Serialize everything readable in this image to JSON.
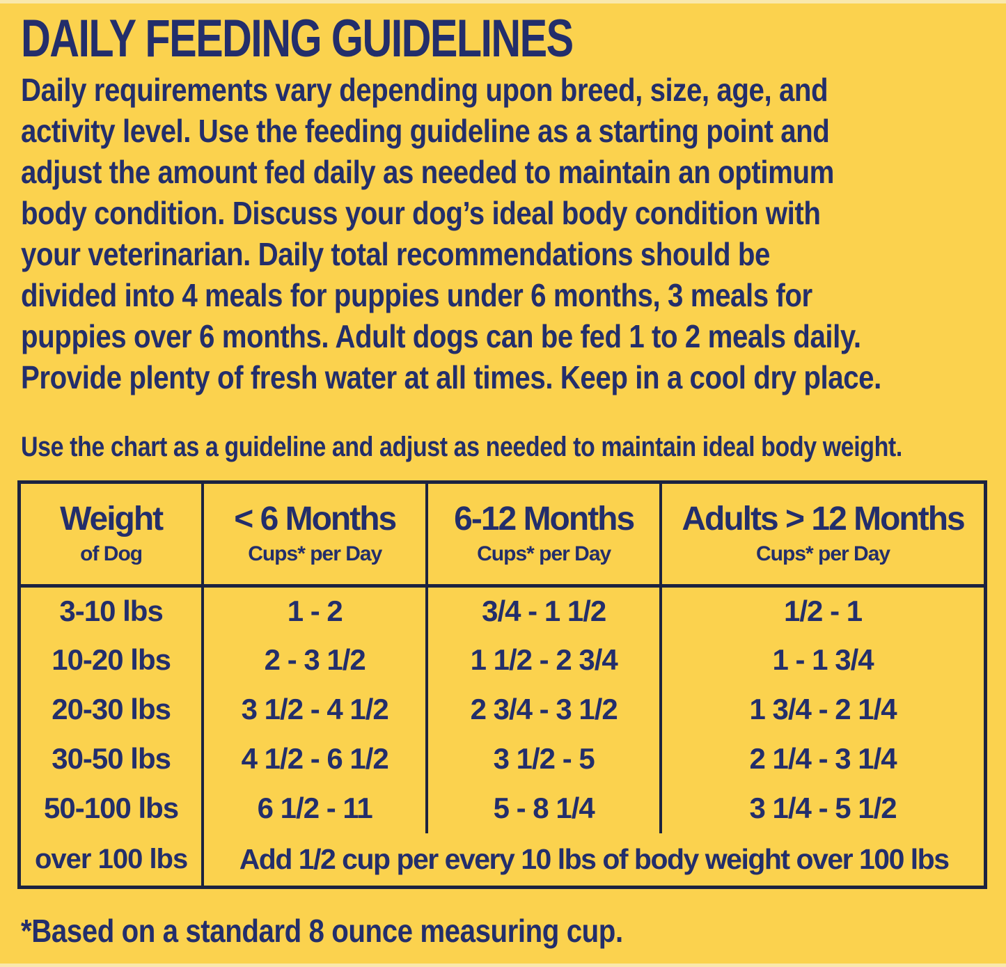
{
  "page": {
    "colors": {
      "yellow": "#fbd24e",
      "navy": "#232e6b",
      "border": "#1c2340"
    }
  },
  "title": "DAILY FEEDING GUIDELINES",
  "intro": {
    "lines": [
      "Daily requirements vary depending upon breed, size, age, and",
      "activity level. Use the feeding guideline as a starting point and",
      "adjust the amount fed daily as needed to maintain an optimum",
      "body condition. Discuss your dog’s ideal body condition with",
      "your veterinarian. Daily total recommendations should be",
      "divided into 4 meals for puppies under 6 months, 3 meals for",
      "puppies over 6 months. Adult dogs can be fed 1 to 2 meals daily.",
      "Provide plenty of fresh water at all times. Keep in a cool dry place."
    ]
  },
  "chart_note": "Use the chart as a guideline and adjust as needed to maintain ideal body weight.",
  "table": {
    "headers": [
      {
        "title": "Weight",
        "subtitle": "of Dog"
      },
      {
        "title": "< 6 Months",
        "subtitle": "Cups* per Day"
      },
      {
        "title": "6-12 Months",
        "subtitle": "Cups* per Day"
      },
      {
        "title": "Adults > 12 Months",
        "subtitle": "Cups* per Day"
      }
    ],
    "rows": [
      {
        "weight": "3-10 lbs",
        "under6": "1 - 2",
        "m6to12": "3/4 - 1 1/2",
        "adult": "1/2 - 1"
      },
      {
        "weight": "10-20 lbs",
        "under6": "2 - 3 1/2",
        "m6to12": "1 1/2 - 2 3/4",
        "adult": "1 - 1 3/4"
      },
      {
        "weight": "20-30 lbs",
        "under6": "3 1/2 - 4 1/2",
        "m6to12": "2 3/4 - 3 1/2",
        "adult": "1 3/4 - 2 1/4"
      },
      {
        "weight": "30-50 lbs",
        "under6": "4 1/2 - 6 1/2",
        "m6to12": "3 1/2 - 5",
        "adult": "2 1/4 - 3 1/4"
      },
      {
        "weight": "50-100 lbs",
        "under6": "6 1/2 - 11",
        "m6to12": "5 - 8 1/4",
        "adult": "3 1/4 - 5 1/2"
      }
    ],
    "over_row": {
      "weight": "over 100 lbs",
      "note": "Add 1/2 cup per every 10 lbs of body weight over 100 lbs"
    }
  },
  "footnote": "*Based on a standard 8 ounce measuring cup."
}
